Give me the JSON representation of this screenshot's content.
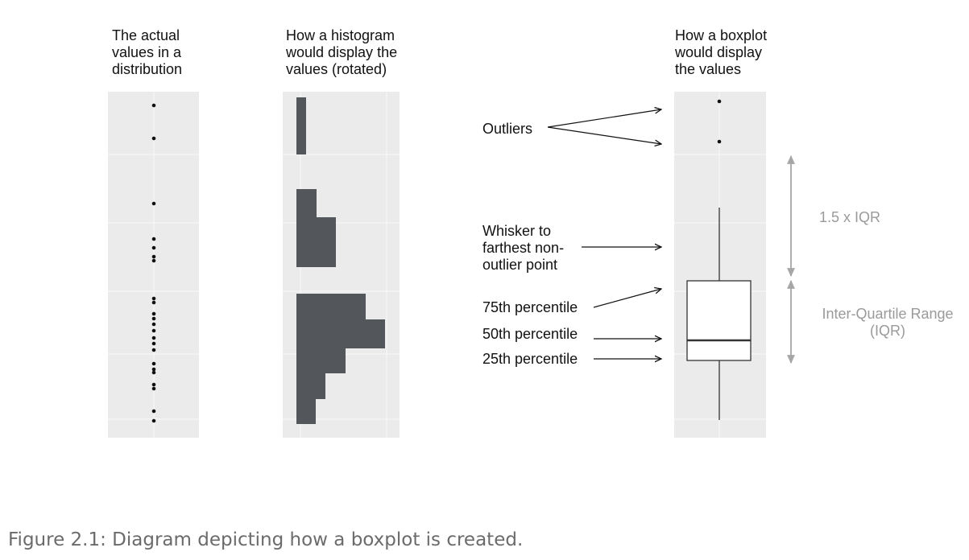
{
  "panels": [
    {
      "title_lines": [
        "The actual",
        "values in a",
        "distribution"
      ]
    },
    {
      "title_lines": [
        "How a histogram",
        "would display the",
        "values (rotated)"
      ]
    },
    {
      "title_lines": [
        "How a boxplot",
        "would display",
        "the values"
      ]
    }
  ],
  "annotations": {
    "outliers": [
      "Outliers"
    ],
    "whisker": [
      "Whisker to",
      "farthest non-",
      "outlier point"
    ],
    "p75": [
      "75th percentile"
    ],
    "p50": [
      "50th percentile"
    ],
    "p25": [
      "25th percentile"
    ]
  },
  "ranges": {
    "iqr15": [
      "1.5 x IQR"
    ],
    "iqr": [
      "Inter-Quartile Range",
      "(IQR)"
    ]
  },
  "caption": "Figure 2.1: Diagram depicting how a boxplot is created.",
  "colors": {
    "panel_bg": "#ebebeb",
    "grid": "#f7f7f7",
    "histogram_fill": "#53565b",
    "point": "#111111",
    "arrow": "#111111",
    "range_arrow": "#a6a6a6",
    "range_text": "#9a9a9a",
    "caption": "#6b6b6b"
  }
}
